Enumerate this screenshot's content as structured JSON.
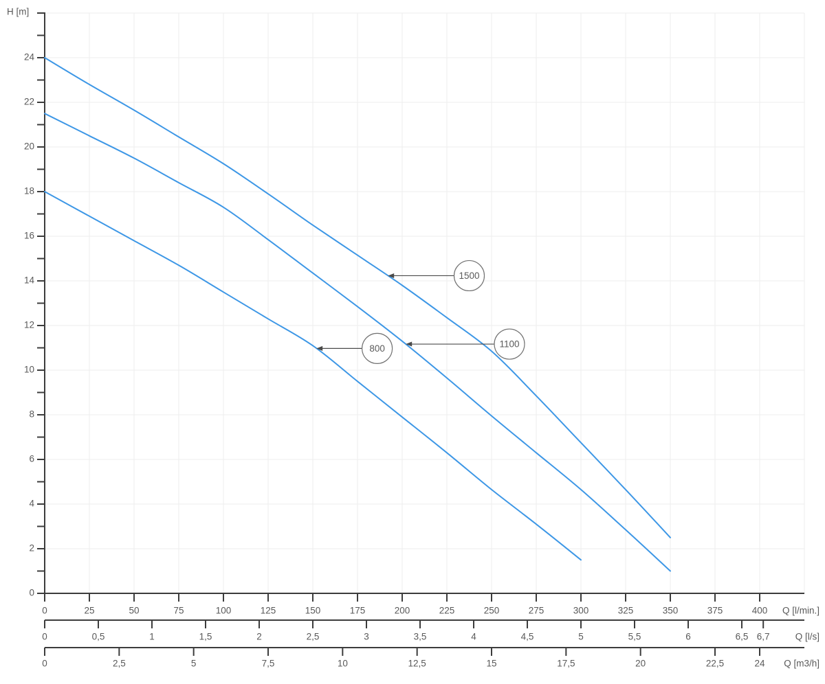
{
  "chart_data": {
    "type": "line",
    "title": "",
    "ylabel": "H [m]",
    "xlabel": "Q",
    "y_axis": {
      "title": "H [m]",
      "min": 0,
      "max": 26,
      "minor_tick_step": 1,
      "tick_values": [
        0,
        2,
        4,
        6,
        8,
        10,
        12,
        14,
        16,
        18,
        20,
        22,
        24
      ],
      "tick_labels": [
        "0",
        "2",
        "4",
        "6",
        "8",
        "10",
        "12",
        "14",
        "16",
        "18",
        "20",
        "22",
        "24"
      ]
    },
    "x_range_lmin": [
      0,
      425
    ],
    "grid": {
      "visible": true,
      "v_step_lmin": 25,
      "h_step_m": 2
    },
    "x_axes": [
      {
        "id": "q-lmin",
        "title": "Q [l/min.]",
        "lmin_per_unit": 1,
        "tick_values": [
          0,
          25,
          50,
          75,
          100,
          125,
          150,
          175,
          200,
          225,
          250,
          275,
          300,
          325,
          350,
          375,
          400
        ],
        "tick_labels": [
          "0",
          "25",
          "50",
          "75",
          "100",
          "125",
          "150",
          "175",
          "200",
          "225",
          "250",
          "275",
          "300",
          "325",
          "350",
          "375",
          "400"
        ]
      },
      {
        "id": "q-ls",
        "title": "Q [l/s]",
        "lmin_per_unit": 60,
        "tick_values": [
          0,
          0.5,
          1,
          1.5,
          2,
          2.5,
          3,
          3.5,
          4,
          4.5,
          5,
          5.5,
          6,
          6.5,
          6.7
        ],
        "tick_labels": [
          "0",
          "0,5",
          "1",
          "1,5",
          "2",
          "2,5",
          "3",
          "3,5",
          "4",
          "4,5",
          "5",
          "5,5",
          "6",
          "6,5",
          "6,7"
        ]
      },
      {
        "id": "q-m3h",
        "title": "Q [m3/h]",
        "lmin_per_unit": 16.666667,
        "tick_values": [
          0,
          2.5,
          5,
          7.5,
          10,
          12.5,
          15,
          17.5,
          20,
          22.5,
          24
        ],
        "tick_labels": [
          "0",
          "2,5",
          "5",
          "7,5",
          "10",
          "12,5",
          "15",
          "17,5",
          "20",
          "22,5",
          "24"
        ]
      }
    ],
    "series": [
      {
        "name": "1500",
        "points": [
          [
            0,
            24
          ],
          [
            25,
            22.8
          ],
          [
            50,
            21.65
          ],
          [
            75,
            20.45
          ],
          [
            100,
            19.25
          ],
          [
            125,
            17.9
          ],
          [
            150,
            16.5
          ],
          [
            175,
            15.15
          ],
          [
            200,
            13.8
          ],
          [
            225,
            12.35
          ],
          [
            250,
            10.85
          ],
          [
            275,
            8.85
          ],
          [
            300,
            6.75
          ],
          [
            325,
            4.65
          ],
          [
            350,
            2.5
          ]
        ]
      },
      {
        "name": "1100",
        "points": [
          [
            0,
            21.5
          ],
          [
            25,
            20.5
          ],
          [
            50,
            19.5
          ],
          [
            75,
            18.4
          ],
          [
            100,
            17.3
          ],
          [
            125,
            15.85
          ],
          [
            150,
            14.35
          ],
          [
            175,
            12.85
          ],
          [
            200,
            11.3
          ],
          [
            225,
            9.65
          ],
          [
            250,
            7.95
          ],
          [
            275,
            6.3
          ],
          [
            300,
            4.65
          ],
          [
            325,
            2.85
          ],
          [
            350,
            1.0
          ]
        ]
      },
      {
        "name": "800",
        "points": [
          [
            0,
            18
          ],
          [
            25,
            16.9
          ],
          [
            50,
            15.8
          ],
          [
            75,
            14.7
          ],
          [
            100,
            13.5
          ],
          [
            125,
            12.3
          ],
          [
            150,
            11.1
          ],
          [
            175,
            9.5
          ],
          [
            200,
            7.9
          ],
          [
            225,
            6.3
          ],
          [
            250,
            4.65
          ],
          [
            275,
            3.1
          ],
          [
            300,
            1.5
          ]
        ]
      }
    ],
    "annotations": [
      {
        "label": "1500",
        "series": "1500",
        "tip_q": 192,
        "circle_q": 237.5
      },
      {
        "label": "1100",
        "series": "1100",
        "tip_q": 202,
        "circle_q": 260
      },
      {
        "label": "800",
        "series": "800",
        "tip_q": 152,
        "circle_q": 186
      }
    ],
    "legend_position": "none",
    "colors": {
      "curve": "#3D97E6",
      "axis": "#3C3C3C",
      "tick_label": "#595959",
      "grid": "#EDEDED",
      "annotation": "#4A4A4A",
      "circle_stroke": "#707070",
      "background": "#FFFFFF"
    }
  }
}
